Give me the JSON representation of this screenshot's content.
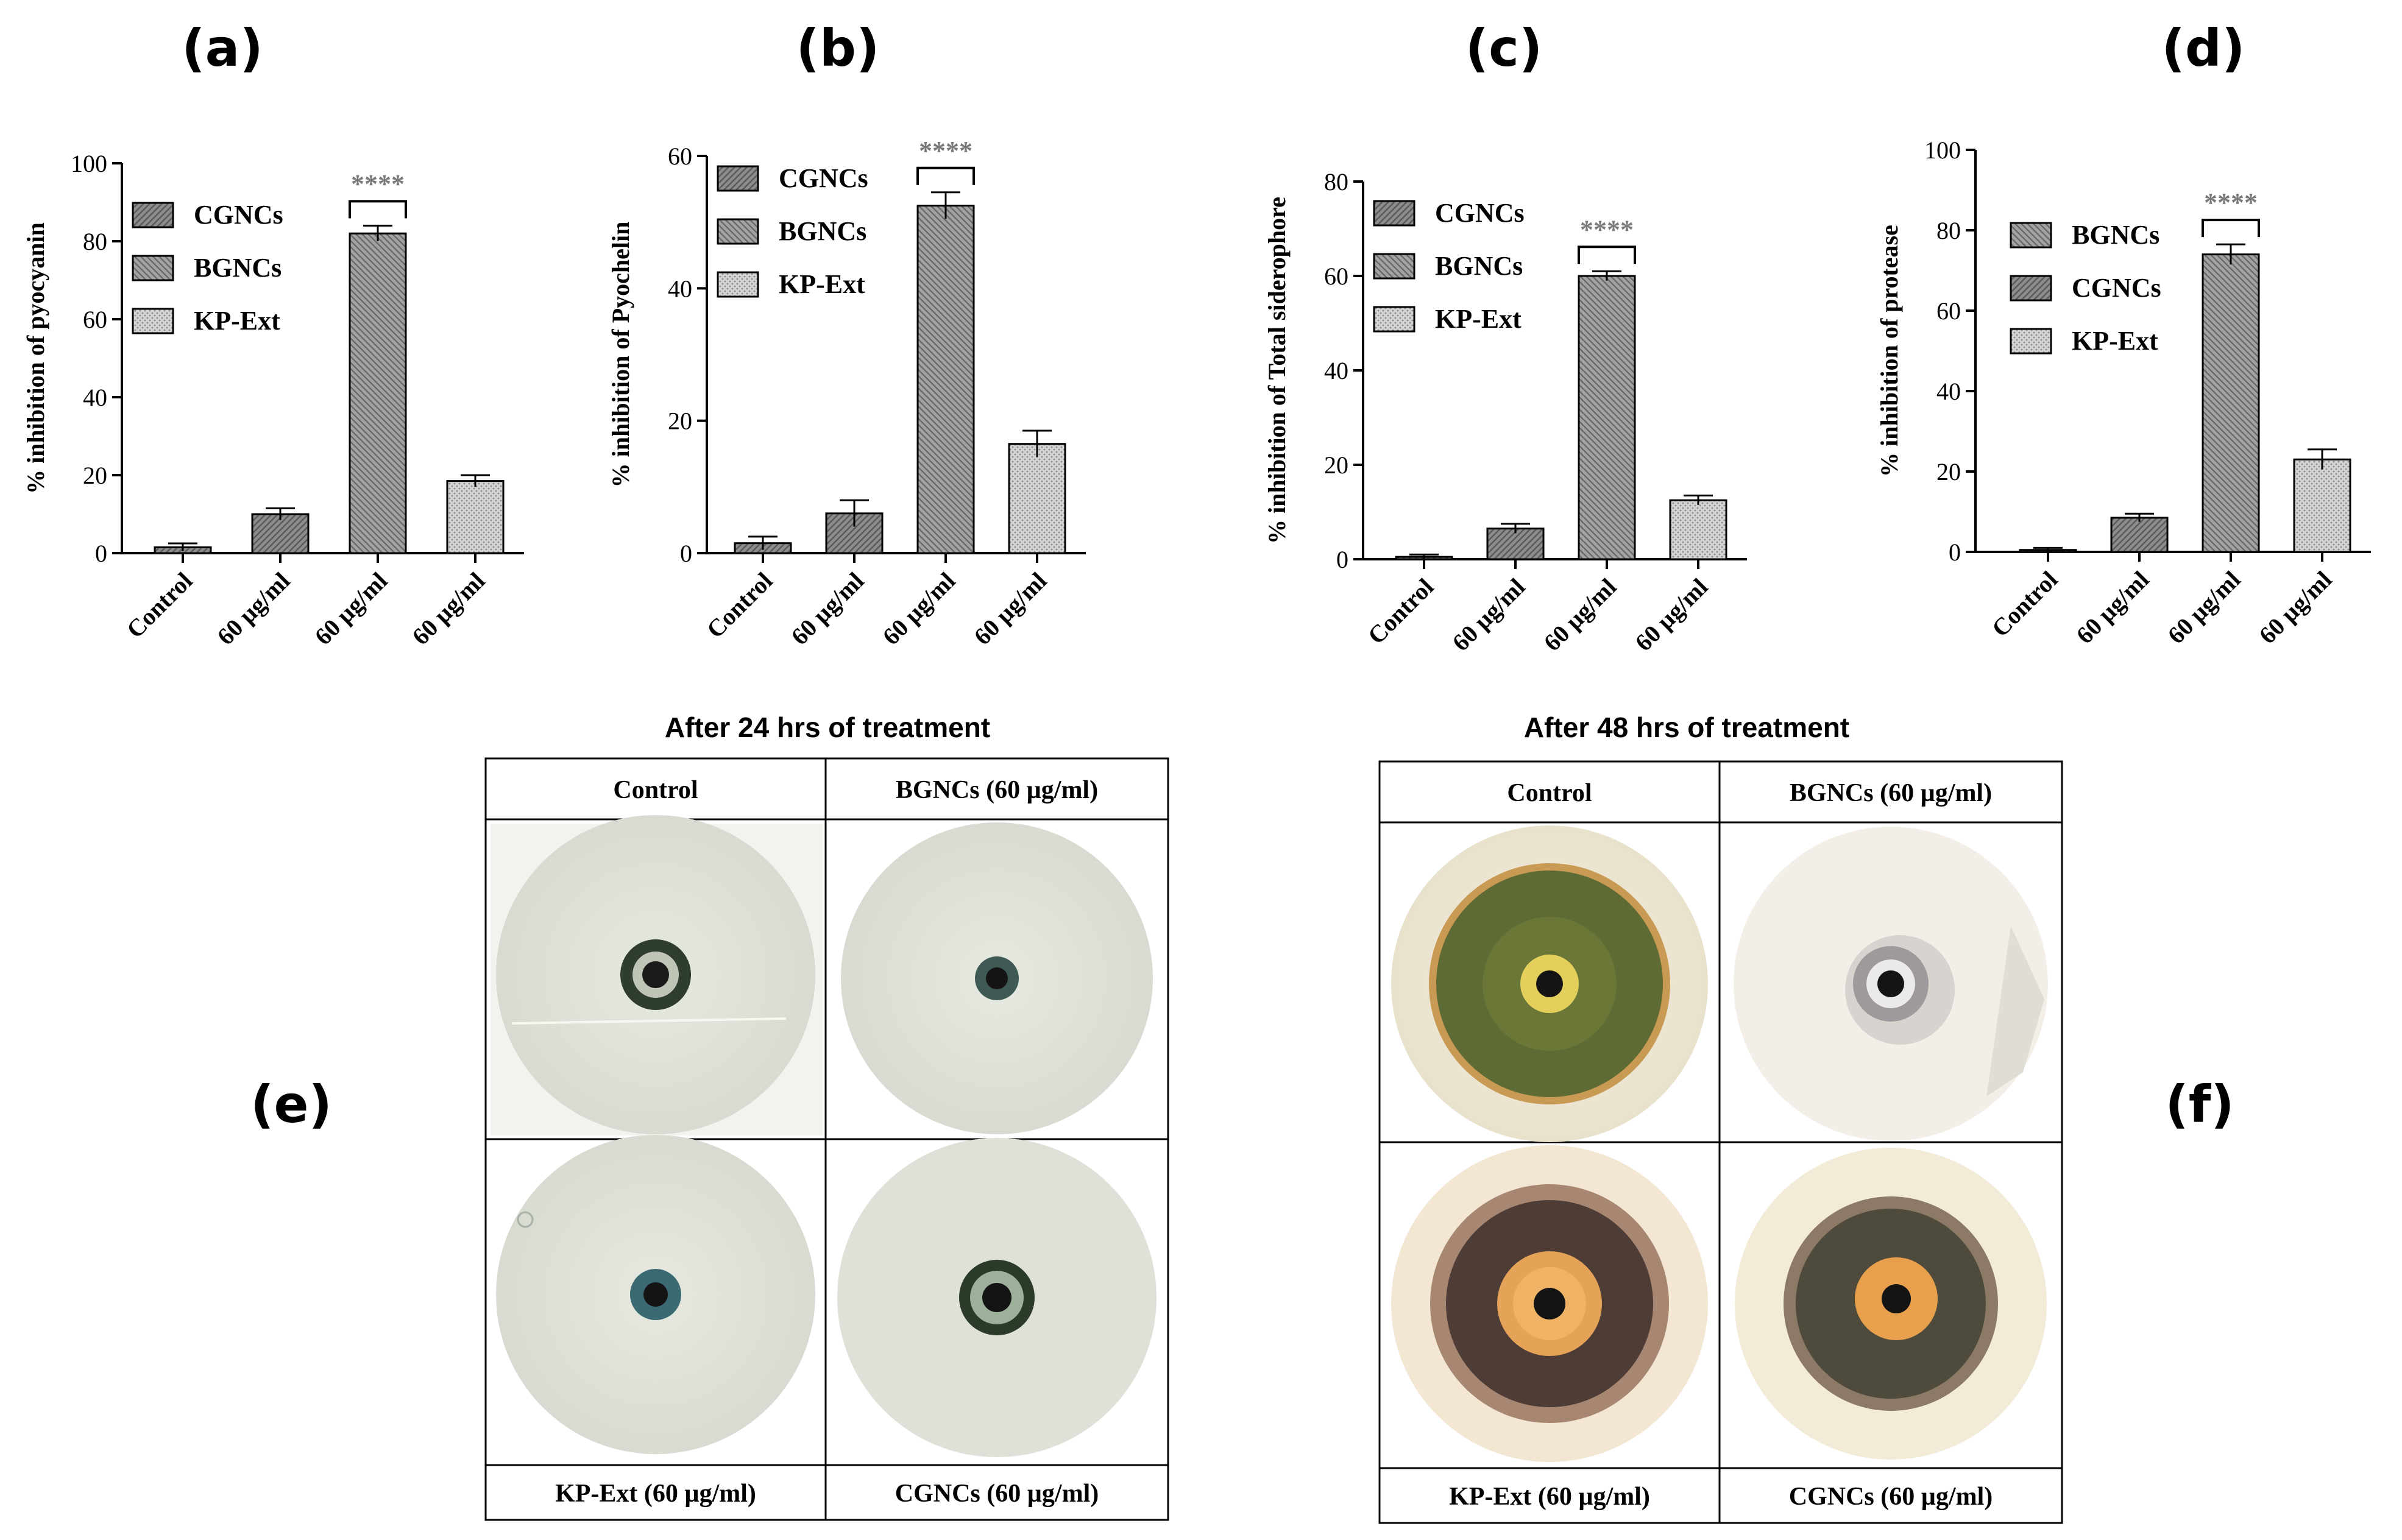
{
  "figure": {
    "panel_labels": [
      "(a)",
      "(b)",
      "(c)",
      "(d)",
      "(e)",
      "(f)"
    ],
    "colors": {
      "bar_fill": "#9a9a9a",
      "bar_fill_light": "#c7c7c7",
      "axis": "#000000",
      "significance": "#7a7a7a"
    }
  },
  "chart_data": [
    {
      "type": "bar",
      "panel": "(a)",
      "ylabel": "% inhibition of pyocyanin",
      "ylim": [
        0,
        100
      ],
      "yticks": [
        "0",
        "20",
        "40",
        "60",
        "80",
        "100"
      ],
      "categories": [
        "Control",
        "60 µg/ml",
        "60 µg/ml",
        "60 µg/ml"
      ],
      "values": [
        1.5,
        10,
        82,
        18.5
      ],
      "errors": [
        1,
        1.5,
        2,
        1.5
      ],
      "bar_groups": [
        "control",
        "CGNCs",
        "BGNCs",
        "KP-Ext"
      ],
      "legend": [
        "CGNCs",
        "BGNCs",
        "KP-Ext"
      ],
      "significance": "****",
      "significance_bar": 2
    },
    {
      "type": "bar",
      "panel": "(b)",
      "ylabel": "% inhibition of Pyochelin",
      "ylim": [
        0,
        60
      ],
      "yticks": [
        "0",
        "20",
        "40",
        "60"
      ],
      "categories": [
        "Control",
        "60 µg/ml",
        "60 µg/ml",
        "60 µg/ml"
      ],
      "values": [
        1.5,
        6,
        52.5,
        16.5
      ],
      "errors": [
        1,
        2,
        2,
        2
      ],
      "bar_groups": [
        "control",
        "CGNCs",
        "BGNCs",
        "KP-Ext"
      ],
      "legend": [
        "CGNCs",
        "BGNCs",
        "KP-Ext"
      ],
      "significance": "****",
      "significance_bar": 2
    },
    {
      "type": "bar",
      "panel": "(c)",
      "ylabel": "% inhibition of Total siderophore",
      "ylim": [
        0,
        80
      ],
      "yticks": [
        "0",
        "20",
        "40",
        "60",
        "80"
      ],
      "categories": [
        "Control",
        "60 µg/ml",
        "60 µg/ml",
        "60 µg/ml"
      ],
      "values": [
        0.5,
        6.5,
        60,
        12.5
      ],
      "errors": [
        0.5,
        1,
        1,
        1
      ],
      "bar_groups": [
        "control",
        "CGNCs",
        "BGNCs",
        "KP-Ext"
      ],
      "legend": [
        "CGNCs",
        "BGNCs",
        "KP-Ext"
      ],
      "significance": "****",
      "significance_bar": 2
    },
    {
      "type": "bar",
      "panel": "(d)",
      "ylabel": "% inhibition of protease",
      "ylim": [
        0,
        100
      ],
      "yticks": [
        "0",
        "20",
        "40",
        "60",
        "80",
        "100"
      ],
      "categories": [
        "Control",
        "60 µg/ml",
        "60 µg/ml",
        "60 µg/ml"
      ],
      "values": [
        0.5,
        8.5,
        74,
        23
      ],
      "errors": [
        0.5,
        1,
        2.5,
        2.5
      ],
      "bar_groups": [
        "control",
        "CGNCs",
        "BGNCs",
        "KP-Ext"
      ],
      "legend": [
        "BGNCs",
        "CGNCs",
        "KP-Ext"
      ],
      "significance": "****",
      "significance_bar": 2
    }
  ],
  "plates": {
    "e": {
      "title": "After 24 hrs of treatment",
      "headers": [
        "Control",
        "BGNCs (60 µg/ml)"
      ],
      "footers": [
        "KP-Ext (60 µg/ml)",
        "CGNCs (60 µg/ml)"
      ]
    },
    "f": {
      "title": "After 48 hrs of treatment",
      "headers": [
        "Control",
        "BGNCs (60 µg/ml)"
      ],
      "footers": [
        "KP-Ext (60 µg/ml)",
        "CGNCs (60 µg/ml)"
      ]
    }
  }
}
